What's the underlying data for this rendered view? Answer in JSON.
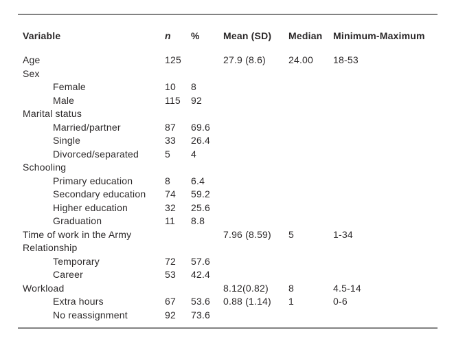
{
  "colors": {
    "text": "#2b2829",
    "rule": "#828282",
    "background": "#ffffff"
  },
  "table": {
    "columns": [
      "Variable",
      "n",
      "%",
      "Mean (SD)",
      "Median",
      "Minimum-Maximum"
    ],
    "rows": [
      {
        "label": "Age",
        "indent": 0,
        "n": "125",
        "pct": "",
        "mean": "27.9 (8.6)",
        "median": "24.00",
        "range": "18-53"
      },
      {
        "label": "Sex",
        "indent": 0,
        "n": "",
        "pct": "",
        "mean": "",
        "median": "",
        "range": ""
      },
      {
        "label": "Female",
        "indent": 1,
        "n": "10",
        "pct": "8",
        "mean": "",
        "median": "",
        "range": ""
      },
      {
        "label": "Male",
        "indent": 1,
        "n": "115",
        "pct": "92",
        "mean": "",
        "median": "",
        "range": ""
      },
      {
        "label": "Marital status",
        "indent": 0,
        "n": "",
        "pct": "",
        "mean": "",
        "median": "",
        "range": ""
      },
      {
        "label": "Married/partner",
        "indent": 1,
        "n": "87",
        "pct": "69.6",
        "mean": "",
        "median": "",
        "range": ""
      },
      {
        "label": "Single",
        "indent": 1,
        "n": "33",
        "pct": "26.4",
        "mean": "",
        "median": "",
        "range": ""
      },
      {
        "label": "Divorced/separated",
        "indent": 1,
        "n": "5",
        "pct": "4",
        "mean": "",
        "median": "",
        "range": ""
      },
      {
        "label": "Schooling",
        "indent": 0,
        "n": "",
        "pct": "",
        "mean": "",
        "median": "",
        "range": ""
      },
      {
        "label": "Primary education",
        "indent": 1,
        "n": "8",
        "pct": "6.4",
        "mean": "",
        "median": "",
        "range": ""
      },
      {
        "label": "Secondary education",
        "indent": 1,
        "n": "74",
        "pct": "59.2",
        "mean": "",
        "median": "",
        "range": ""
      },
      {
        "label": "Higher education",
        "indent": 1,
        "n": "32",
        "pct": "25.6",
        "mean": "",
        "median": "",
        "range": ""
      },
      {
        "label": "Graduation",
        "indent": 1,
        "n": "11",
        "pct": "8.8",
        "mean": "",
        "median": "",
        "range": ""
      },
      {
        "label": "Time of work in the Army",
        "indent": 0,
        "n": "",
        "pct": "",
        "mean": "7.96 (8.59)",
        "median": "5",
        "range": "1-34"
      },
      {
        "label": "Relationship",
        "indent": 0,
        "n": "",
        "pct": "",
        "mean": "",
        "median": "",
        "range": ""
      },
      {
        "label": "Temporary",
        "indent": 1,
        "n": "72",
        "pct": "57.6",
        "mean": "",
        "median": "",
        "range": ""
      },
      {
        "label": "Career",
        "indent": 1,
        "n": "53",
        "pct": "42.4",
        "mean": "",
        "median": "",
        "range": ""
      },
      {
        "label": "Workload",
        "indent": 0,
        "n": "",
        "pct": "",
        "mean": "8.12(0.82)",
        "median": "8",
        "range": "4.5-14"
      },
      {
        "label": "Extra hours",
        "indent": 1,
        "n": "67",
        "pct": "53.6",
        "mean": "0.88 (1.14)",
        "median": "1",
        "range": "0-6"
      },
      {
        "label": "No reassignment",
        "indent": 1,
        "n": "92",
        "pct": "73.6",
        "mean": "",
        "median": "",
        "range": ""
      }
    ]
  }
}
